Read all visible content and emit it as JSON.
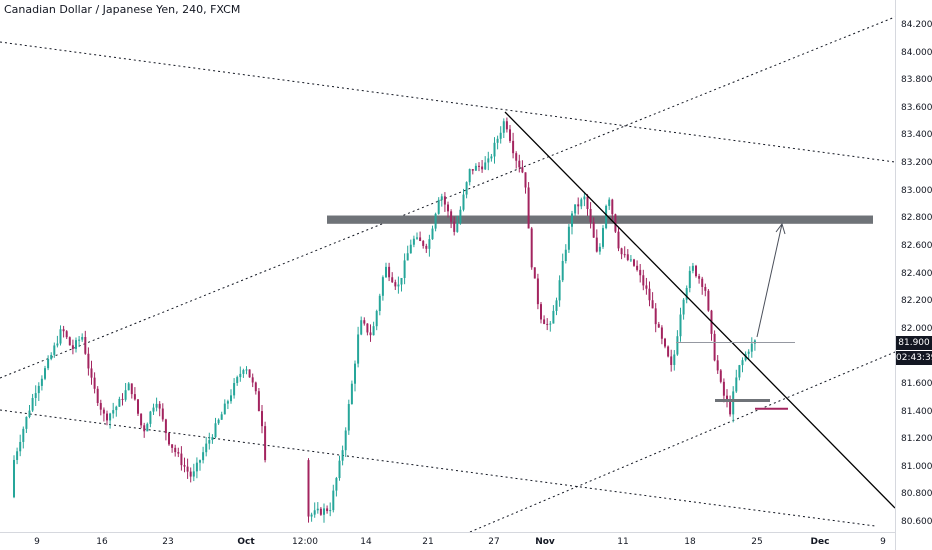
{
  "chart_data": {
    "type": "candlestick",
    "title": "Canadian Dollar / Japanese Yen, 240, FXCM",
    "y_ticks": [
      "84.200",
      "84.000",
      "83.800",
      "83.600",
      "83.400",
      "83.200",
      "83.000",
      "82.800",
      "82.600",
      "82.400",
      "82.200",
      "82.000",
      "81.800",
      "81.600",
      "81.400",
      "81.200",
      "81.000",
      "80.800",
      "80.600"
    ],
    "x_ticks": [
      "9",
      "16",
      "23",
      "Oct",
      "12:00",
      "14",
      "21",
      "27",
      "Nov",
      "11",
      "18",
      "25",
      "Dec",
      "9"
    ],
    "ylim": [
      80.58,
      84.32
    ],
    "last_price": "81.900",
    "countdown": "02:43:39",
    "colors": {
      "up": "#26a69a",
      "down": "#a3245f",
      "zone": "#6f7378",
      "trend": "#000000",
      "guide": "#131722"
    },
    "resistance_zone": {
      "low": 82.76,
      "high": 82.82
    },
    "path_points": [
      {
        "t": 0,
        "p": 80.78
      },
      {
        "t": 10,
        "p": 80.95
      },
      {
        "t": 22,
        "p": 81.25
      },
      {
        "t": 35,
        "p": 81.55
      },
      {
        "t": 48,
        "p": 81.75
      },
      {
        "t": 62,
        "p": 82.0
      },
      {
        "t": 72,
        "p": 81.85
      },
      {
        "t": 82,
        "p": 81.95
      },
      {
        "t": 92,
        "p": 81.6
      },
      {
        "t": 105,
        "p": 81.35
      },
      {
        "t": 118,
        "p": 81.45
      },
      {
        "t": 130,
        "p": 81.6
      },
      {
        "t": 143,
        "p": 81.25
      },
      {
        "t": 156,
        "p": 81.5
      },
      {
        "t": 168,
        "p": 81.2
      },
      {
        "t": 180,
        "p": 81.05
      },
      {
        "t": 192,
        "p": 80.92
      },
      {
        "t": 206,
        "p": 81.15
      },
      {
        "t": 220,
        "p": 81.35
      },
      {
        "t": 232,
        "p": 81.55
      },
      {
        "t": 245,
        "p": 81.75
      },
      {
        "t": 255,
        "p": 81.55
      },
      {
        "t": 264,
        "p": 81.25
      },
      {
        "t": 268,
        "p": 80.62
      },
      {
        "t": 310,
        "p": 80.65
      },
      {
        "t": 330,
        "p": 80.7
      },
      {
        "t": 342,
        "p": 81.1
      },
      {
        "t": 352,
        "p": 81.6
      },
      {
        "t": 360,
        "p": 82.05
      },
      {
        "t": 372,
        "p": 81.95
      },
      {
        "t": 385,
        "p": 82.45
      },
      {
        "t": 398,
        "p": 82.3
      },
      {
        "t": 412,
        "p": 82.65
      },
      {
        "t": 428,
        "p": 82.6
      },
      {
        "t": 440,
        "p": 83.0
      },
      {
        "t": 455,
        "p": 82.7
      },
      {
        "t": 470,
        "p": 83.15
      },
      {
        "t": 488,
        "p": 83.2
      },
      {
        "t": 505,
        "p": 83.52
      },
      {
        "t": 515,
        "p": 83.25
      },
      {
        "t": 525,
        "p": 83.1
      },
      {
        "t": 530,
        "p": 82.55
      },
      {
        "t": 540,
        "p": 82.1
      },
      {
        "t": 550,
        "p": 82.0
      },
      {
        "t": 560,
        "p": 82.35
      },
      {
        "t": 572,
        "p": 82.85
      },
      {
        "t": 585,
        "p": 82.95
      },
      {
        "t": 598,
        "p": 82.5
      },
      {
        "t": 608,
        "p": 83.0
      },
      {
        "t": 620,
        "p": 82.55
      },
      {
        "t": 635,
        "p": 82.45
      },
      {
        "t": 648,
        "p": 82.25
      },
      {
        "t": 660,
        "p": 81.95
      },
      {
        "t": 672,
        "p": 81.7
      },
      {
        "t": 682,
        "p": 82.2
      },
      {
        "t": 692,
        "p": 82.45
      },
      {
        "t": 705,
        "p": 82.3
      },
      {
        "t": 713,
        "p": 81.85
      },
      {
        "t": 722,
        "p": 81.55
      },
      {
        "t": 730,
        "p": 81.4
      },
      {
        "t": 738,
        "p": 81.7
      },
      {
        "t": 748,
        "p": 81.85
      },
      {
        "t": 757,
        "p": 81.92
      }
    ]
  }
}
